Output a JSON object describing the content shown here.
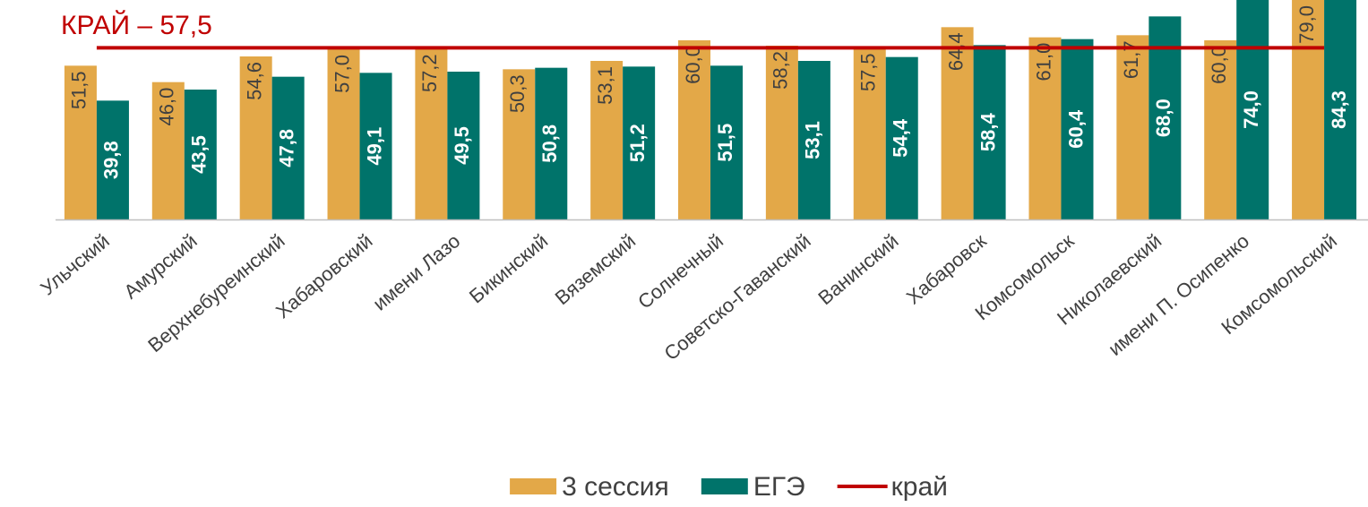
{
  "chart_data": {
    "type": "bar",
    "annotation": "КРАЙ – 57,5",
    "categories": [
      "Ульчский",
      "Амурский",
      "Верхнебуреинский",
      "Хабаровский",
      "имени Лазо",
      "Бикинский",
      "Вяземский",
      "Солнечный",
      "Советско-Гаванский",
      "Ванинский",
      "Хабаровск",
      "Комсомольск",
      "Николаевский",
      "имени П. Осипенко",
      "Комсомольский"
    ],
    "series": [
      {
        "name": "3 сессия",
        "color": "#e3a848",
        "values": [
          51.5,
          46.0,
          54.6,
          57.0,
          57.2,
          50.3,
          53.1,
          60.0,
          58.2,
          57.5,
          64.4,
          61.0,
          61.7,
          60.0,
          79.0
        ],
        "value_labels": [
          "51,5",
          "46,0",
          "54,6",
          "57,0",
          "57,2",
          "50,3",
          "53,1",
          "60,0",
          "58,2",
          "57,5",
          "64,4",
          "61,0",
          "61,7",
          "60,0",
          "79,0"
        ]
      },
      {
        "name": "ЕГЭ",
        "color": "#00736a",
        "values": [
          39.8,
          43.5,
          47.8,
          49.1,
          49.5,
          50.8,
          51.2,
          51.5,
          53.1,
          54.4,
          58.4,
          60.4,
          68.0,
          74.0,
          84.3
        ],
        "value_labels": [
          "39,8",
          "43,5",
          "47,8",
          "49,1",
          "49,5",
          "50,8",
          "51,2",
          "51,5",
          "53,1",
          "54,4",
          "58,4",
          "60,4",
          "68,0",
          "74,0",
          "84,3"
        ]
      },
      {
        "name": "край",
        "color": "#c00000",
        "type": "line",
        "values": [
          57.5,
          57.5,
          57.5,
          57.5,
          57.5,
          57.5,
          57.5,
          57.5,
          57.5,
          57.5,
          57.5,
          57.5,
          57.5,
          57.5,
          57.5
        ]
      }
    ],
    "ylim": [
      0,
      73.5
    ]
  }
}
